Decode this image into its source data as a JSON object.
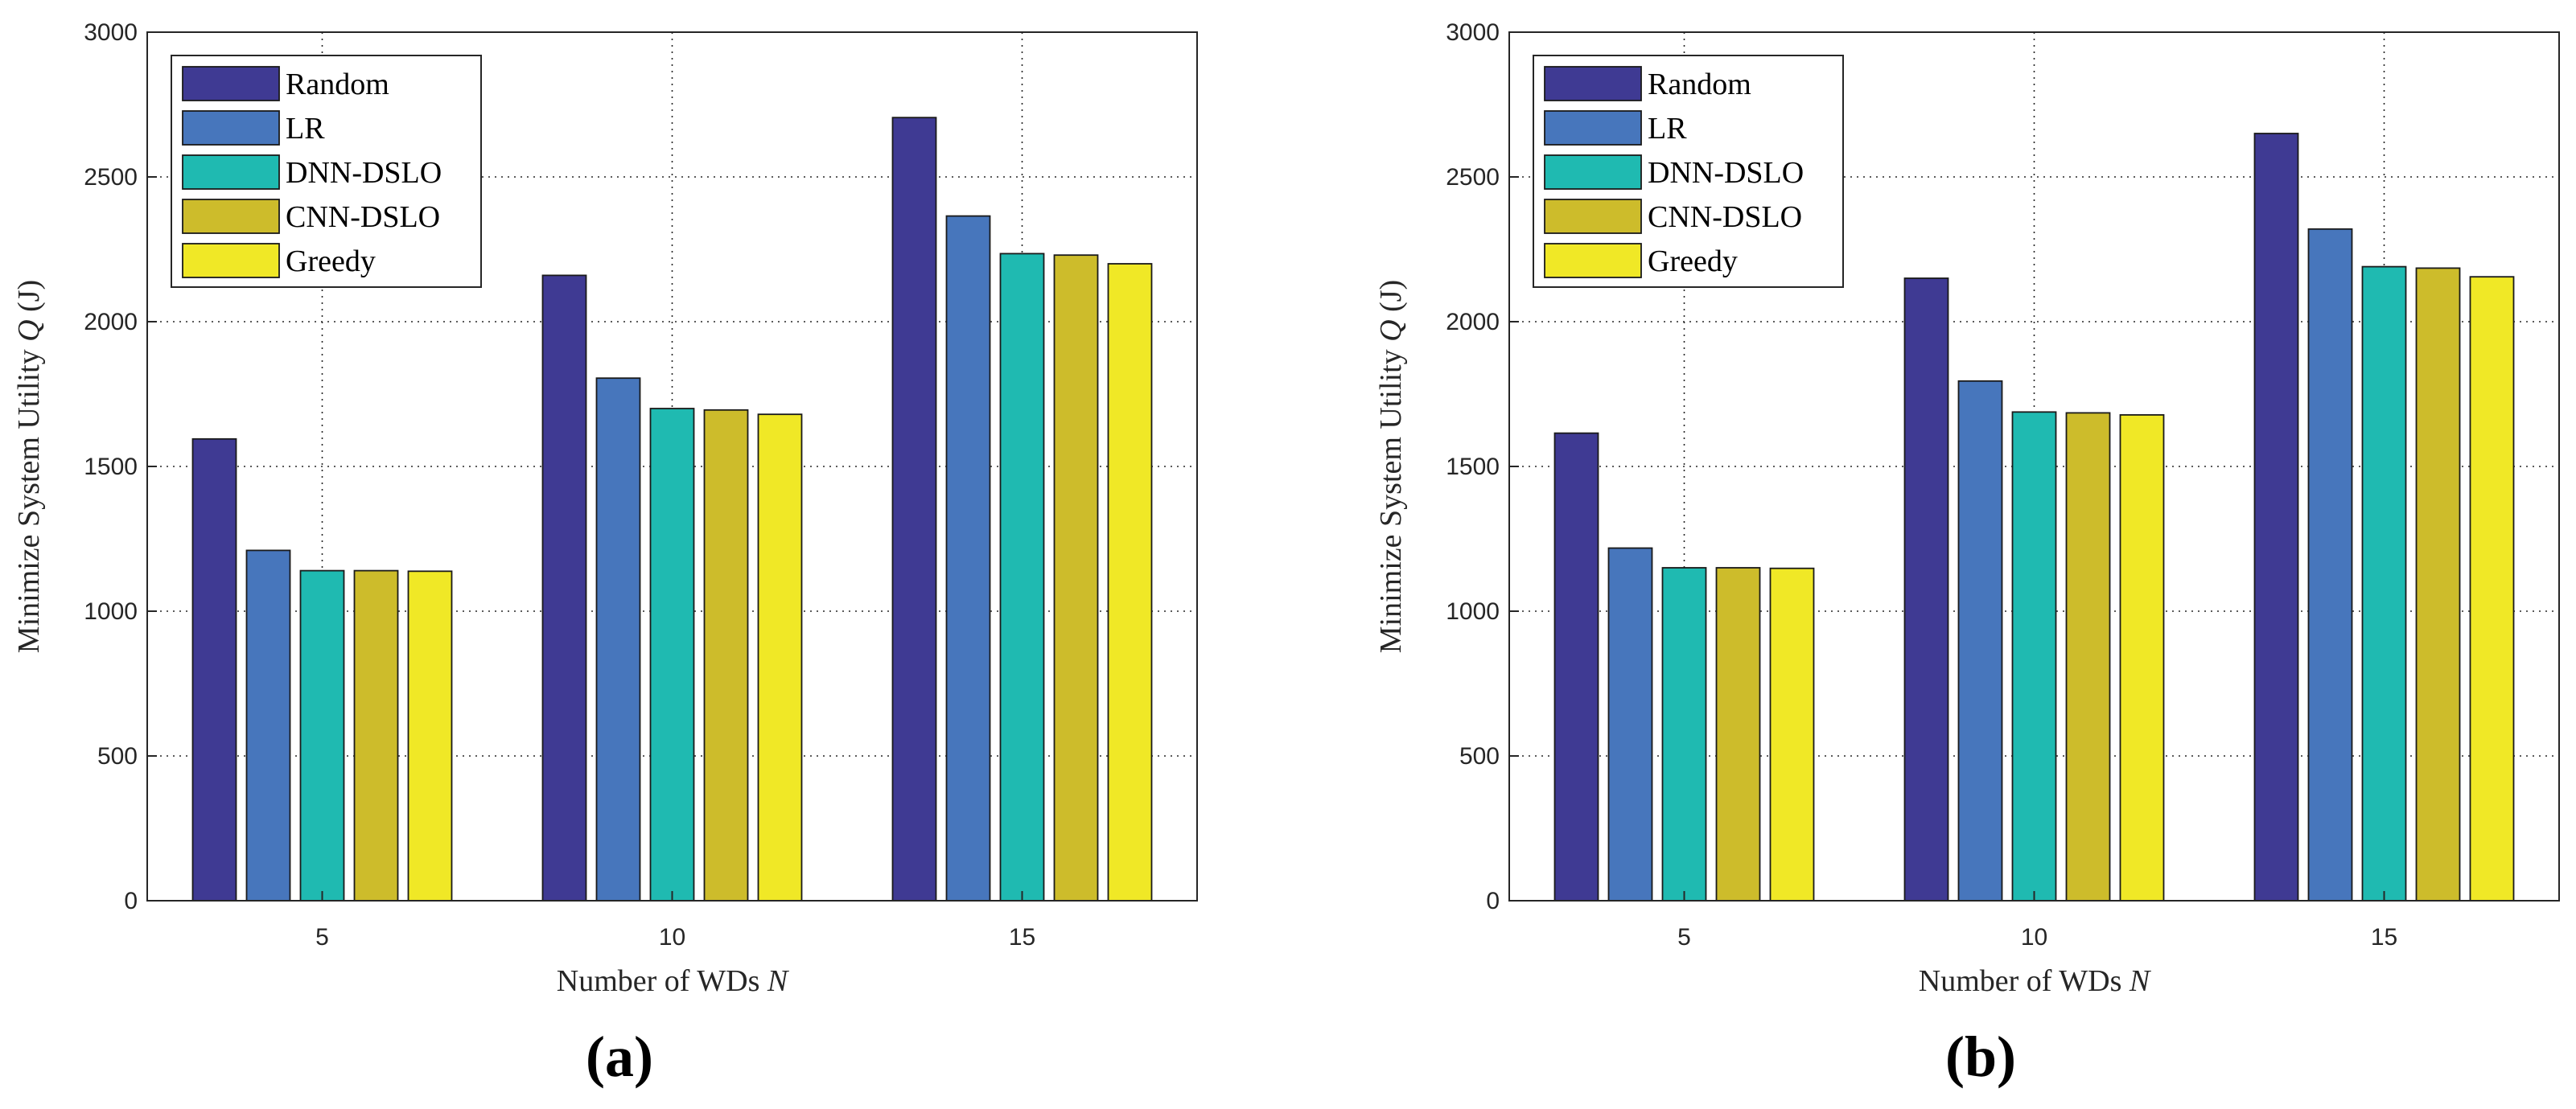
{
  "chart_data": [
    {
      "type": "bar",
      "panel_label": "(a)",
      "categories": [
        "5",
        "10",
        "15"
      ],
      "xlabel": "Number of WDs",
      "xlabel_symbol": "N",
      "ylabel": "Minimize System Utility",
      "ylabel_symbol": "Q",
      "ylabel_unit": "(J)",
      "ylim": [
        0,
        3000
      ],
      "yticks": [
        "0",
        "500",
        "1000",
        "1500",
        "2000",
        "2500",
        "3000"
      ],
      "legend_position": "top-left",
      "grid": true,
      "series": [
        {
          "name": "Random",
          "color": "#3f3a93",
          "values": [
            1595,
            2160,
            2705
          ]
        },
        {
          "name": "LR",
          "color": "#4776bc",
          "values": [
            1210,
            1805,
            2365
          ]
        },
        {
          "name": "DNN-DSLO",
          "color": "#1fbab1",
          "values": [
            1140,
            1700,
            2235
          ]
        },
        {
          "name": "CNN-DSLO",
          "color": "#cdbc2b",
          "values": [
            1140,
            1695,
            2230
          ]
        },
        {
          "name": "Greedy",
          "color": "#f0e826",
          "values": [
            1138,
            1680,
            2200
          ]
        }
      ]
    },
    {
      "type": "bar",
      "panel_label": "(b)",
      "categories": [
        "5",
        "10",
        "15"
      ],
      "xlabel": "Number of WDs",
      "xlabel_symbol": "N",
      "ylabel": "Minimize System Utility",
      "ylabel_symbol": "Q",
      "ylabel_unit": "(J)",
      "ylim": [
        0,
        3000
      ],
      "yticks": [
        "0",
        "500",
        "1000",
        "1500",
        "2000",
        "2500",
        "3000"
      ],
      "legend_position": "top-left",
      "grid": true,
      "series": [
        {
          "name": "Random",
          "color": "#3f3a93",
          "values": [
            1615,
            2150,
            2650
          ]
        },
        {
          "name": "LR",
          "color": "#4776bc",
          "values": [
            1218,
            1795,
            2320
          ]
        },
        {
          "name": "DNN-DSLO",
          "color": "#1fbab1",
          "values": [
            1150,
            1688,
            2190
          ]
        },
        {
          "name": "CNN-DSLO",
          "color": "#cdbc2b",
          "values": [
            1150,
            1685,
            2185
          ]
        },
        {
          "name": "Greedy",
          "color": "#f0e826",
          "values": [
            1148,
            1678,
            2155
          ]
        }
      ]
    }
  ]
}
